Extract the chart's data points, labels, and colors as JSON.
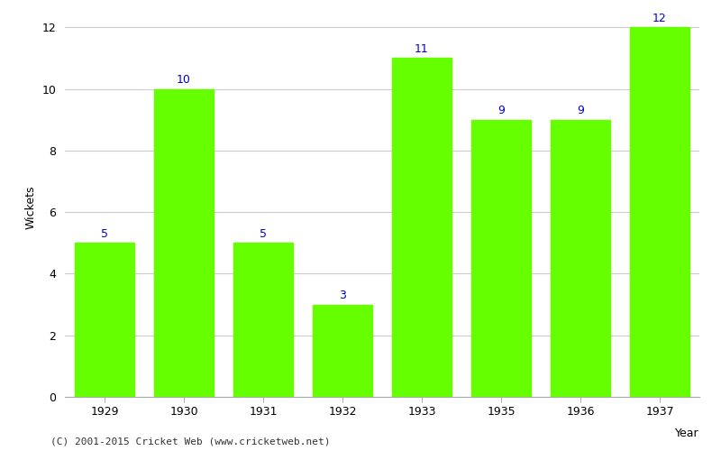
{
  "categories": [
    "1929",
    "1930",
    "1931",
    "1932",
    "1933",
    "1935",
    "1936",
    "1937"
  ],
  "values": [
    5,
    10,
    5,
    3,
    11,
    9,
    9,
    12
  ],
  "bar_color": "#66ff00",
  "label_color": "#0000cc",
  "xlabel": "Year",
  "ylabel": "Wickets",
  "ylim": [
    0,
    12
  ],
  "yticks": [
    0,
    2,
    4,
    6,
    8,
    10,
    12
  ],
  "background_color": "#ffffff",
  "grid_color": "#cccccc",
  "footnote": "(C) 2001-2015 Cricket Web (www.cricketweb.net)",
  "label_fontsize": 9,
  "axis_label_fontsize": 9,
  "tick_fontsize": 9,
  "footnote_fontsize": 8,
  "bar_width": 0.75
}
